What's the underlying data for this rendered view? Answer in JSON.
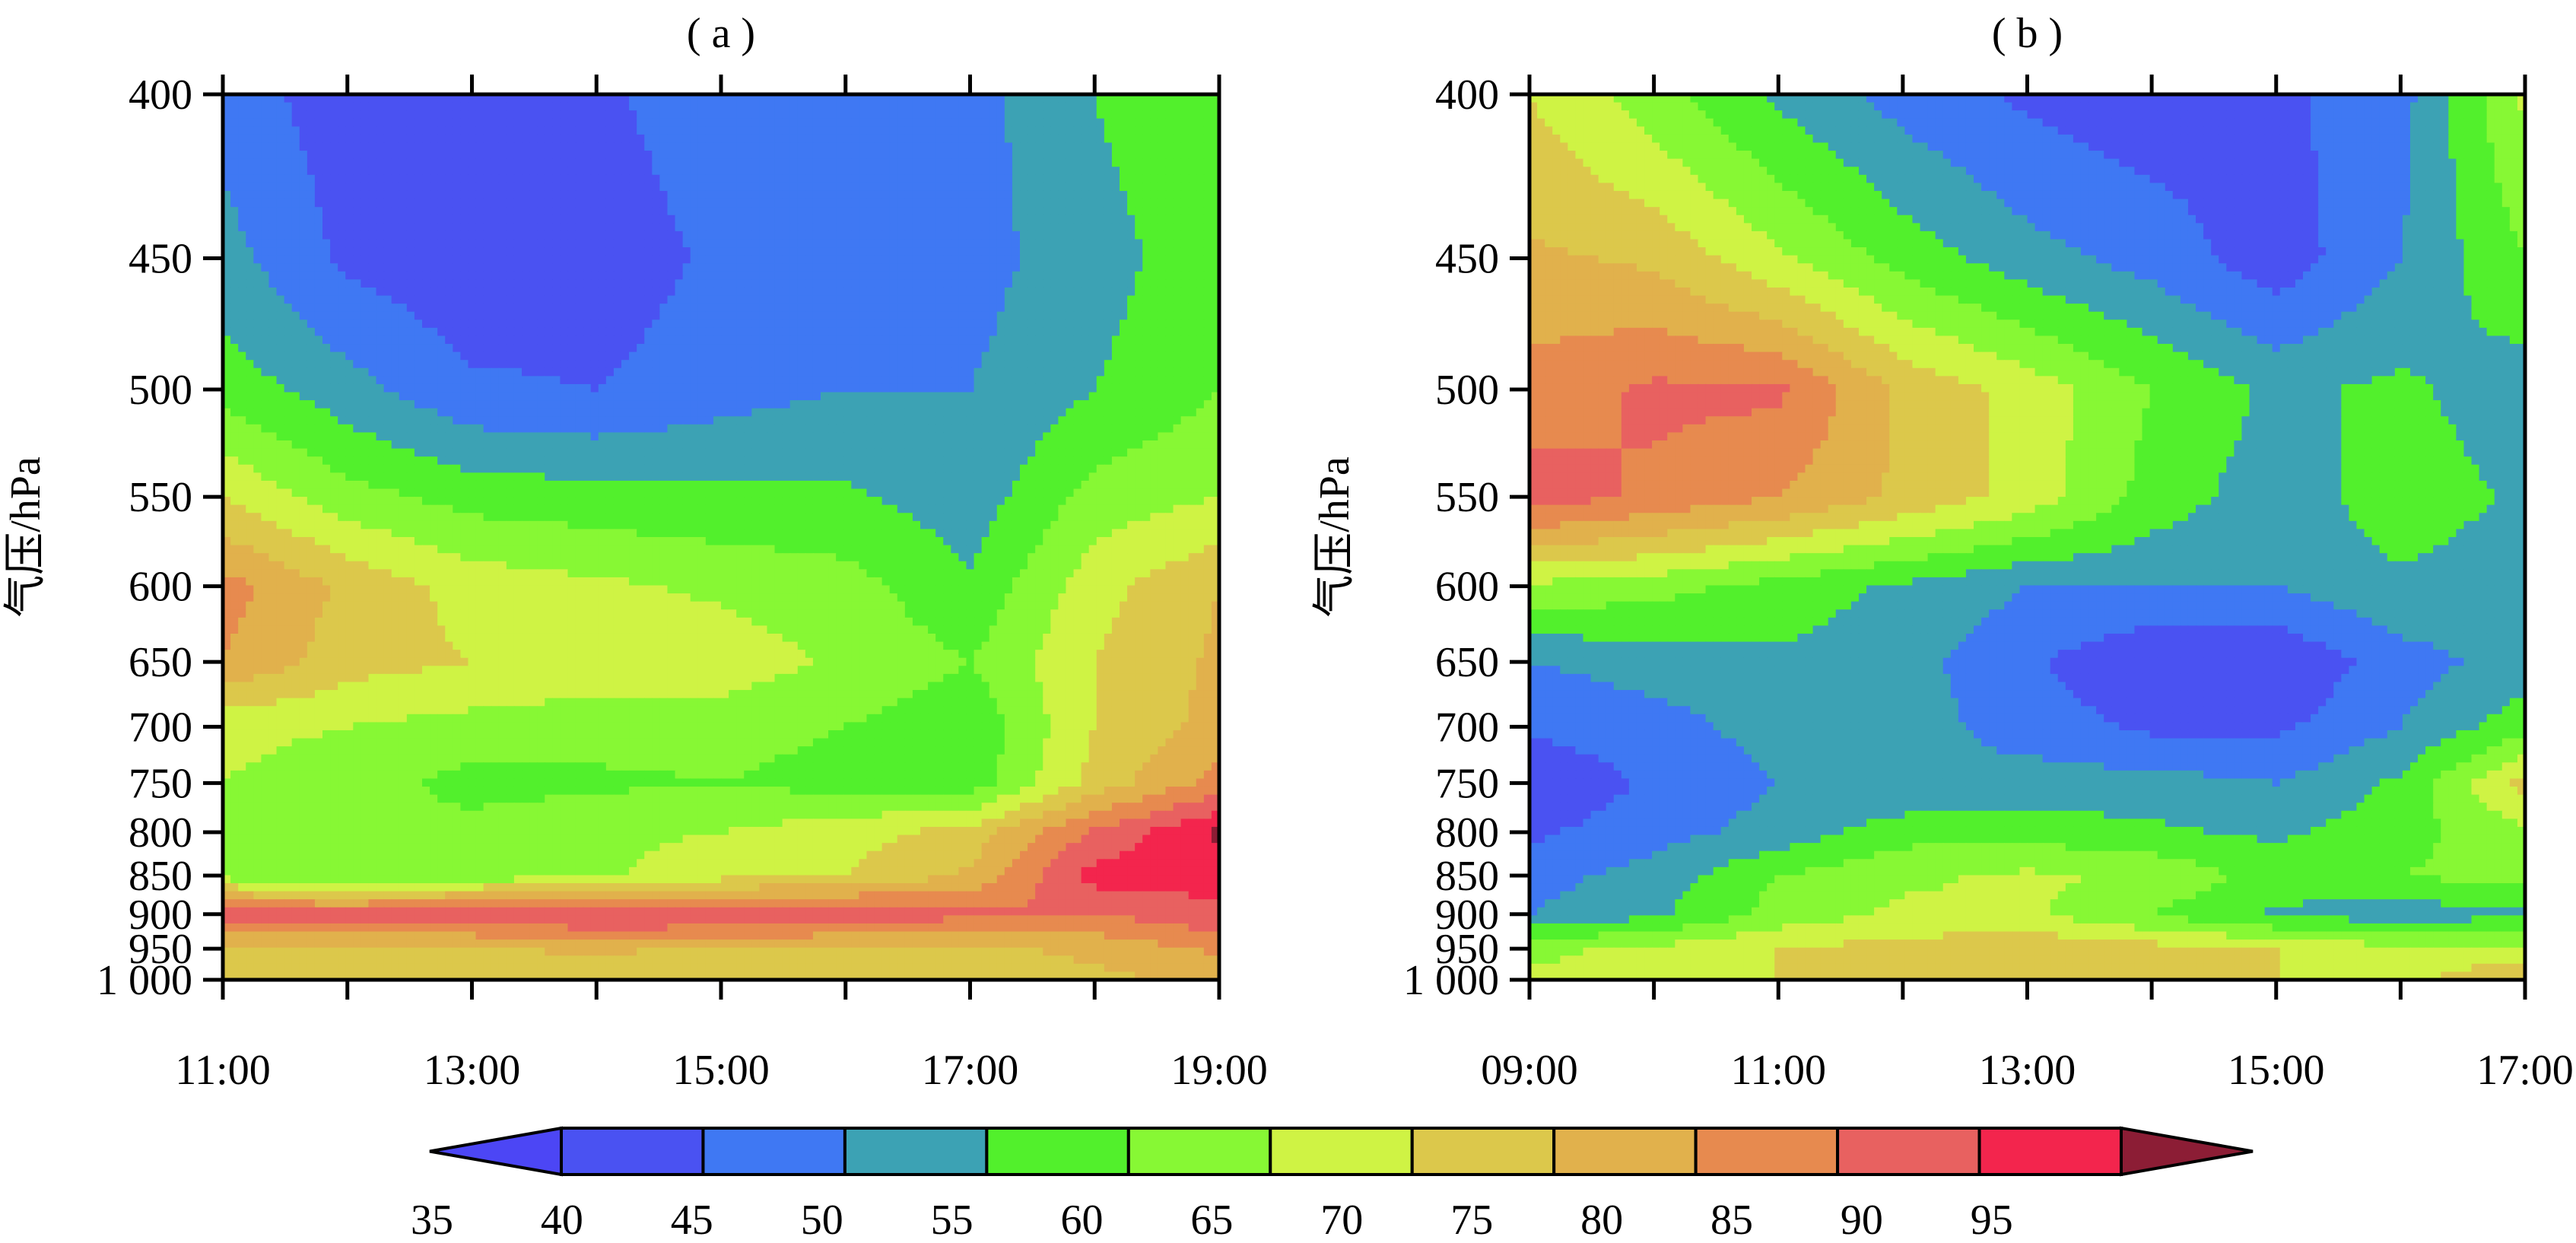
{
  "chart_data": [
    {
      "type": "heatmap",
      "panel_label": "( a )",
      "ylabel": "气压/hPa",
      "yticks": [
        "400",
        "450",
        "500",
        "550",
        "600",
        "650",
        "700",
        "750",
        "800",
        "850",
        "900",
        "950",
        "1 000"
      ],
      "ylevels": [
        400,
        450,
        500,
        550,
        600,
        650,
        700,
        750,
        800,
        850,
        900,
        950,
        1000
      ],
      "yscale": "reciprocal",
      "xticks": [
        "11:00",
        "13:00",
        "15:00",
        "17:00",
        "19:00"
      ],
      "x_hours": [
        11,
        12,
        13,
        14,
        15,
        16,
        17,
        18,
        19
      ],
      "xlim": [
        11,
        19
      ],
      "ylim": [
        1000,
        400
      ],
      "z": [
        [
          48,
          42,
          40,
          44,
          48,
          50,
          48,
          55,
          60
        ],
        [
          52,
          44,
          41,
          42,
          46,
          48,
          48,
          53,
          58
        ],
        [
          58,
          52,
          46,
          45,
          48,
          50,
          50,
          55,
          60
        ],
        [
          70,
          62,
          58,
          57,
          56,
          56,
          52,
          62,
          65
        ],
        [
          82,
          74,
          68,
          66,
          64,
          62,
          56,
          68,
          75
        ],
        [
          80,
          72,
          70,
          68,
          68,
          64,
          60,
          70,
          76
        ],
        [
          66,
          65,
          63,
          62,
          62,
          60,
          56,
          70,
          77
        ],
        [
          65,
          63,
          58,
          59,
          60,
          58,
          57,
          72,
          82
        ],
        [
          63,
          60,
          62,
          64,
          65,
          68,
          72,
          86,
          96
        ],
        [
          63,
          60,
          62,
          64,
          68,
          70,
          76,
          92,
          92
        ],
        [
          88,
          88,
          89,
          91,
          91,
          90,
          86,
          85,
          89
        ],
        [
          74,
          73,
          74,
          76,
          74,
          73,
          74,
          76,
          81
        ],
        [
          70,
          72,
          74,
          72,
          70,
          72,
          72,
          74,
          76
        ]
      ]
    },
    {
      "type": "heatmap",
      "panel_label": "( b )",
      "ylabel": "气压/hPa",
      "yticks": [
        "400",
        "450",
        "500",
        "550",
        "600",
        "650",
        "700",
        "750",
        "800",
        "850",
        "900",
        "950",
        "1 000"
      ],
      "ylevels": [
        400,
        450,
        500,
        550,
        600,
        650,
        700,
        750,
        800,
        850,
        900,
        950,
        1000
      ],
      "yscale": "reciprocal",
      "xticks": [
        "09:00",
        "11:00",
        "13:00",
        "15:00",
        "17:00"
      ],
      "x_hours": [
        9,
        10,
        11,
        12,
        13,
        14,
        15,
        16,
        17
      ],
      "xlim": [
        9,
        17
      ],
      "ylim": [
        1000,
        400
      ],
      "z": [
        [
          70,
          62,
          54,
          48,
          44,
          42,
          44,
          48,
          66
        ],
        [
          76,
          74,
          66,
          58,
          52,
          48,
          42,
          50,
          60
        ],
        [
          82,
          86,
          86,
          74,
          68,
          60,
          54,
          56,
          52
        ],
        [
          88,
          84,
          80,
          74,
          68,
          58,
          52,
          58,
          54
        ],
        [
          64,
          62,
          58,
          54,
          50,
          50,
          50,
          54,
          52
        ],
        [
          50,
          52,
          54,
          52,
          46,
          40,
          40,
          48,
          52
        ],
        [
          46,
          48,
          52,
          52,
          48,
          44,
          44,
          50,
          58
        ],
        [
          40,
          46,
          50,
          50,
          52,
          52,
          50,
          56,
          72
        ],
        [
          44,
          48,
          52,
          58,
          58,
          56,
          54,
          58,
          64
        ],
        [
          48,
          52,
          60,
          64,
          66,
          64,
          58,
          60,
          62
        ],
        [
          50,
          54,
          62,
          66,
          66,
          60,
          54,
          52,
          54
        ],
        [
          64,
          66,
          70,
          72,
          74,
          72,
          70,
          66,
          66
        ],
        [
          66,
          66,
          70,
          72,
          74,
          74,
          70,
          68,
          76
        ]
      ]
    }
  ],
  "colorbar": {
    "labels": [
      "35",
      "40",
      "45",
      "50",
      "55",
      "60",
      "65",
      "70",
      "75",
      "80",
      "85",
      "90",
      "95"
    ],
    "levels": [
      35,
      40,
      45,
      50,
      55,
      60,
      65,
      70,
      75,
      80,
      85,
      90,
      95
    ],
    "colors": [
      "#4c46f5",
      "#4a52f2",
      "#3f78f3",
      "#3ca2b4",
      "#52f02c",
      "#87f834",
      "#cff344",
      "#dcc84b",
      "#e1b14c",
      "#e78a4f",
      "#e86160",
      "#f3254d",
      "#8c1d35"
    ],
    "extend": "both"
  }
}
